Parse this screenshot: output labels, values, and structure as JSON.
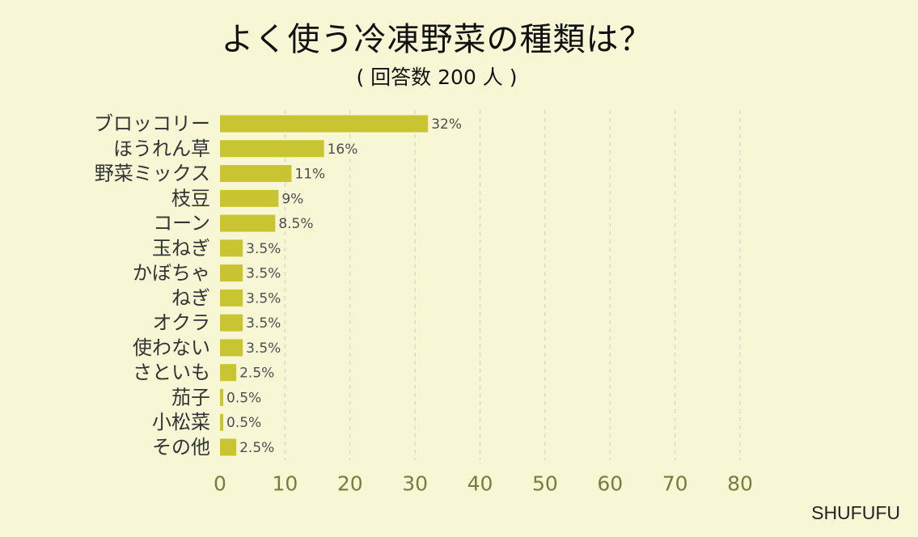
{
  "chart_data": {
    "type": "bar",
    "orientation": "horizontal",
    "title": "よく使う冷凍野菜の種類は？",
    "subtitle": "( 回答数 200 人 )",
    "categories": [
      "ブロッコリー",
      "ほうれん草",
      "野菜ミックス",
      "枝豆",
      "コーン",
      "玉ねぎ",
      "かぼちゃ",
      "ねぎ",
      "オクラ",
      "使わない",
      "さといも",
      "茄子",
      "小松菜",
      "その他"
    ],
    "values": [
      32,
      16,
      11,
      9,
      8.5,
      3.5,
      3.5,
      3.5,
      3.5,
      3.5,
      2.5,
      0.5,
      0.5,
      2.5
    ],
    "value_labels": [
      "32%",
      "16%",
      "11%",
      "9%",
      "8.5%",
      "3.5%",
      "3.5%",
      "3.5%",
      "3.5%",
      "3.5%",
      "2.5%",
      "0.5%",
      "0.5%",
      "2.5%"
    ],
    "xlim": [
      0,
      80
    ],
    "xticks": [
      0,
      10,
      20,
      30,
      40,
      50,
      60,
      70,
      80
    ],
    "grid": "vertical-dashed",
    "colors": {
      "bar": "#c9c431",
      "background": "#f7f7d6",
      "grid": "#cfcfc0",
      "tick_text": "#7c7a3e"
    }
  },
  "source": "SHUFUFU"
}
